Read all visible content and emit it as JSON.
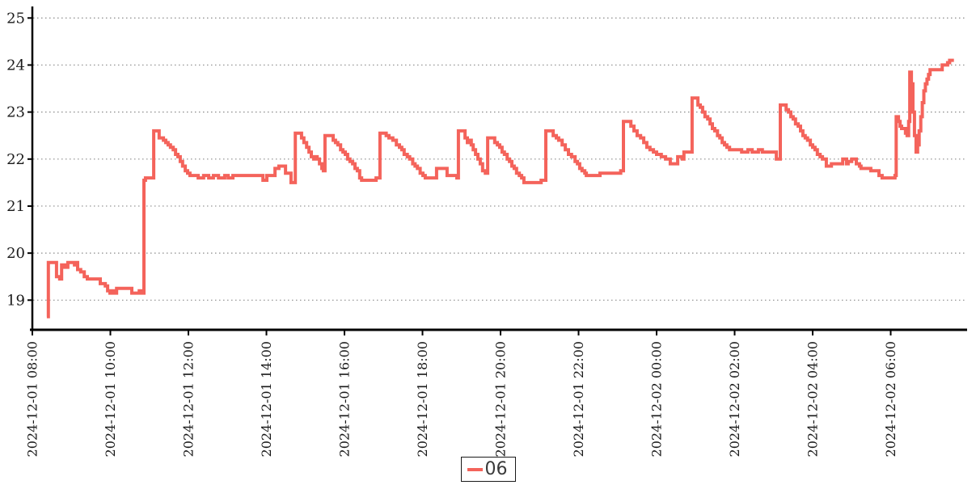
{
  "page": {
    "background": "#ffffff",
    "title": ""
  },
  "legend": {
    "label": "06"
  },
  "colors": {
    "series": "#f4635b",
    "grid": "#8a8a8a",
    "axis": "#000000",
    "tick_text": "#1a1a1a"
  },
  "chart_data": {
    "type": "line",
    "title": "",
    "xlabel": "",
    "ylabel": "",
    "grid": {
      "horizontal": true,
      "style": "dotted",
      "color": "#8a8a8a"
    },
    "legend_position": "bottom-center",
    "x_axis": {
      "unit": "hours since 2024-12-01 08:00",
      "tick_hours": [
        0,
        2,
        4,
        6,
        8,
        10,
        12,
        14,
        16,
        18,
        20,
        22
      ],
      "tick_labels": [
        "2024-12-01 08:00",
        "2024-12-01 10:00",
        "2024-12-01 12:00",
        "2024-12-01 14:00",
        "2024-12-01 16:00",
        "2024-12-01 18:00",
        "2024-12-01 20:00",
        "2024-12-01 22:00",
        "2024-12-02 00:00",
        "2024-12-02 02:00",
        "2024-12-02 04:00",
        "2024-12-02 06:00"
      ],
      "range_hours": [
        0,
        23.95
      ]
    },
    "y_axis": {
      "tick_values": [
        19,
        20,
        21,
        22,
        23,
        24,
        25
      ],
      "tick_labels": [
        "19",
        "20",
        "21",
        "22",
        "23",
        "24",
        "25"
      ],
      "range": [
        18.35,
        25.15
      ]
    },
    "series": [
      {
        "name": "06",
        "color": "#f4635b",
        "step": true,
        "points": [
          [
            0.37,
            18.65
          ],
          [
            0.41,
            19.8
          ],
          [
            0.62,
            19.5
          ],
          [
            0.7,
            19.45
          ],
          [
            0.75,
            19.75
          ],
          [
            0.83,
            19.7
          ],
          [
            0.91,
            19.8
          ],
          [
            1.08,
            19.75
          ],
          [
            1.12,
            19.8
          ],
          [
            1.16,
            19.65
          ],
          [
            1.24,
            19.6
          ],
          [
            1.33,
            19.5
          ],
          [
            1.41,
            19.45
          ],
          [
            1.74,
            19.35
          ],
          [
            1.87,
            19.3
          ],
          [
            1.93,
            19.2
          ],
          [
            1.99,
            19.15
          ],
          [
            2.05,
            19.2
          ],
          [
            2.09,
            19.15
          ],
          [
            2.16,
            19.25
          ],
          [
            2.55,
            19.15
          ],
          [
            2.74,
            19.2
          ],
          [
            2.78,
            19.15
          ],
          [
            2.86,
            21.55
          ],
          [
            2.9,
            21.6
          ],
          [
            3.11,
            22.6
          ],
          [
            3.25,
            22.45
          ],
          [
            3.36,
            22.4
          ],
          [
            3.42,
            22.35
          ],
          [
            3.48,
            22.3
          ],
          [
            3.54,
            22.25
          ],
          [
            3.61,
            22.2
          ],
          [
            3.67,
            22.1
          ],
          [
            3.73,
            22.05
          ],
          [
            3.79,
            21.95
          ],
          [
            3.85,
            21.85
          ],
          [
            3.92,
            21.75
          ],
          [
            3.98,
            21.7
          ],
          [
            4.04,
            21.65
          ],
          [
            4.25,
            21.6
          ],
          [
            4.39,
            21.65
          ],
          [
            4.52,
            21.6
          ],
          [
            4.64,
            21.65
          ],
          [
            4.77,
            21.6
          ],
          [
            4.93,
            21.65
          ],
          [
            5.02,
            21.6
          ],
          [
            5.14,
            21.65
          ],
          [
            5.91,
            21.55
          ],
          [
            6.01,
            21.65
          ],
          [
            6.22,
            21.8
          ],
          [
            6.32,
            21.85
          ],
          [
            6.49,
            21.7
          ],
          [
            6.63,
            21.5
          ],
          [
            6.74,
            22.55
          ],
          [
            6.9,
            22.45
          ],
          [
            6.96,
            22.35
          ],
          [
            7.03,
            22.25
          ],
          [
            7.09,
            22.15
          ],
          [
            7.15,
            22.05
          ],
          [
            7.21,
            22.0
          ],
          [
            7.25,
            22.05
          ],
          [
            7.3,
            22.0
          ],
          [
            7.36,
            21.9
          ],
          [
            7.42,
            21.8
          ],
          [
            7.46,
            21.75
          ],
          [
            7.5,
            22.5
          ],
          [
            7.71,
            22.4
          ],
          [
            7.77,
            22.35
          ],
          [
            7.83,
            22.3
          ],
          [
            7.9,
            22.2
          ],
          [
            7.96,
            22.15
          ],
          [
            8.02,
            22.1
          ],
          [
            8.08,
            22.0
          ],
          [
            8.14,
            21.95
          ],
          [
            8.21,
            21.9
          ],
          [
            8.27,
            21.8
          ],
          [
            8.33,
            21.75
          ],
          [
            8.39,
            21.6
          ],
          [
            8.44,
            21.55
          ],
          [
            8.81,
            21.6
          ],
          [
            8.91,
            22.55
          ],
          [
            9.07,
            22.5
          ],
          [
            9.14,
            22.45
          ],
          [
            9.24,
            22.4
          ],
          [
            9.33,
            22.3
          ],
          [
            9.41,
            22.25
          ],
          [
            9.47,
            22.2
          ],
          [
            9.53,
            22.1
          ],
          [
            9.61,
            22.05
          ],
          [
            9.67,
            22.0
          ],
          [
            9.75,
            21.9
          ],
          [
            9.81,
            21.85
          ],
          [
            9.87,
            21.8
          ],
          [
            9.94,
            21.7
          ],
          [
            10.01,
            21.65
          ],
          [
            10.07,
            21.6
          ],
          [
            10.36,
            21.8
          ],
          [
            10.63,
            21.65
          ],
          [
            10.88,
            21.6
          ],
          [
            10.92,
            22.6
          ],
          [
            11.09,
            22.45
          ],
          [
            11.15,
            22.35
          ],
          [
            11.21,
            22.4
          ],
          [
            11.25,
            22.3
          ],
          [
            11.3,
            22.2
          ],
          [
            11.36,
            22.1
          ],
          [
            11.42,
            22.0
          ],
          [
            11.48,
            21.9
          ],
          [
            11.54,
            21.75
          ],
          [
            11.61,
            21.7
          ],
          [
            11.67,
            22.45
          ],
          [
            11.85,
            22.35
          ],
          [
            11.92,
            22.3
          ],
          [
            11.98,
            22.25
          ],
          [
            12.04,
            22.15
          ],
          [
            12.1,
            22.1
          ],
          [
            12.17,
            22.0
          ],
          [
            12.23,
            21.95
          ],
          [
            12.29,
            21.85
          ],
          [
            12.35,
            21.8
          ],
          [
            12.41,
            21.7
          ],
          [
            12.48,
            21.65
          ],
          [
            12.54,
            21.6
          ],
          [
            12.6,
            21.5
          ],
          [
            13.04,
            21.55
          ],
          [
            13.16,
            22.6
          ],
          [
            13.35,
            22.5
          ],
          [
            13.43,
            22.45
          ],
          [
            13.49,
            22.4
          ],
          [
            13.58,
            22.3
          ],
          [
            13.66,
            22.2
          ],
          [
            13.74,
            22.1
          ],
          [
            13.82,
            22.05
          ],
          [
            13.91,
            21.95
          ],
          [
            13.97,
            21.9
          ],
          [
            14.03,
            21.8
          ],
          [
            14.09,
            21.75
          ],
          [
            14.16,
            21.7
          ],
          [
            14.2,
            21.65
          ],
          [
            14.55,
            21.7
          ],
          [
            15.08,
            21.75
          ],
          [
            15.15,
            22.8
          ],
          [
            15.34,
            22.7
          ],
          [
            15.42,
            22.6
          ],
          [
            15.5,
            22.5
          ],
          [
            15.59,
            22.45
          ],
          [
            15.67,
            22.35
          ],
          [
            15.75,
            22.25
          ],
          [
            15.83,
            22.2
          ],
          [
            15.92,
            22.15
          ],
          [
            16.0,
            22.1
          ],
          [
            16.12,
            22.05
          ],
          [
            16.23,
            22.0
          ],
          [
            16.35,
            21.9
          ],
          [
            16.54,
            22.05
          ],
          [
            16.66,
            22.0
          ],
          [
            16.7,
            22.15
          ],
          [
            16.91,
            23.3
          ],
          [
            17.06,
            23.15
          ],
          [
            17.12,
            23.1
          ],
          [
            17.18,
            23.0
          ],
          [
            17.24,
            22.9
          ],
          [
            17.31,
            22.85
          ],
          [
            17.37,
            22.75
          ],
          [
            17.43,
            22.65
          ],
          [
            17.49,
            22.6
          ],
          [
            17.56,
            22.5
          ],
          [
            17.62,
            22.45
          ],
          [
            17.68,
            22.35
          ],
          [
            17.74,
            22.3
          ],
          [
            17.8,
            22.25
          ],
          [
            17.87,
            22.2
          ],
          [
            18.18,
            22.15
          ],
          [
            18.34,
            22.2
          ],
          [
            18.45,
            22.15
          ],
          [
            18.61,
            22.2
          ],
          [
            18.71,
            22.15
          ],
          [
            19.07,
            22.0
          ],
          [
            19.17,
            23.15
          ],
          [
            19.32,
            23.05
          ],
          [
            19.38,
            23.0
          ],
          [
            19.44,
            22.9
          ],
          [
            19.5,
            22.85
          ],
          [
            19.56,
            22.75
          ],
          [
            19.63,
            22.7
          ],
          [
            19.69,
            22.6
          ],
          [
            19.75,
            22.5
          ],
          [
            19.81,
            22.45
          ],
          [
            19.87,
            22.4
          ],
          [
            19.94,
            22.3
          ],
          [
            20.0,
            22.25
          ],
          [
            20.06,
            22.2
          ],
          [
            20.12,
            22.1
          ],
          [
            20.19,
            22.05
          ],
          [
            20.25,
            22.0
          ],
          [
            20.35,
            21.85
          ],
          [
            20.48,
            21.9
          ],
          [
            20.77,
            22.0
          ],
          [
            20.87,
            21.9
          ],
          [
            20.91,
            21.95
          ],
          [
            21.0,
            22.0
          ],
          [
            21.12,
            21.9
          ],
          [
            21.2,
            21.85
          ],
          [
            21.24,
            21.8
          ],
          [
            21.49,
            21.75
          ],
          [
            21.7,
            21.65
          ],
          [
            21.78,
            21.6
          ],
          [
            22.11,
            21.65
          ],
          [
            22.14,
            22.9
          ],
          [
            22.2,
            22.8
          ],
          [
            22.24,
            22.7
          ],
          [
            22.28,
            22.65
          ],
          [
            22.38,
            22.55
          ],
          [
            22.42,
            22.5
          ],
          [
            22.46,
            22.8
          ],
          [
            22.49,
            23.85
          ],
          [
            22.53,
            23.6
          ],
          [
            22.57,
            23.0
          ],
          [
            22.61,
            22.5
          ],
          [
            22.65,
            22.15
          ],
          [
            22.69,
            22.3
          ],
          [
            22.73,
            22.6
          ],
          [
            22.77,
            22.9
          ],
          [
            22.81,
            23.2
          ],
          [
            22.85,
            23.45
          ],
          [
            22.89,
            23.6
          ],
          [
            22.93,
            23.7
          ],
          [
            22.97,
            23.8
          ],
          [
            23.01,
            23.9
          ],
          [
            23.32,
            24.0
          ],
          [
            23.46,
            24.05
          ],
          [
            23.51,
            24.1
          ],
          [
            23.62,
            24.1
          ]
        ]
      }
    ]
  }
}
